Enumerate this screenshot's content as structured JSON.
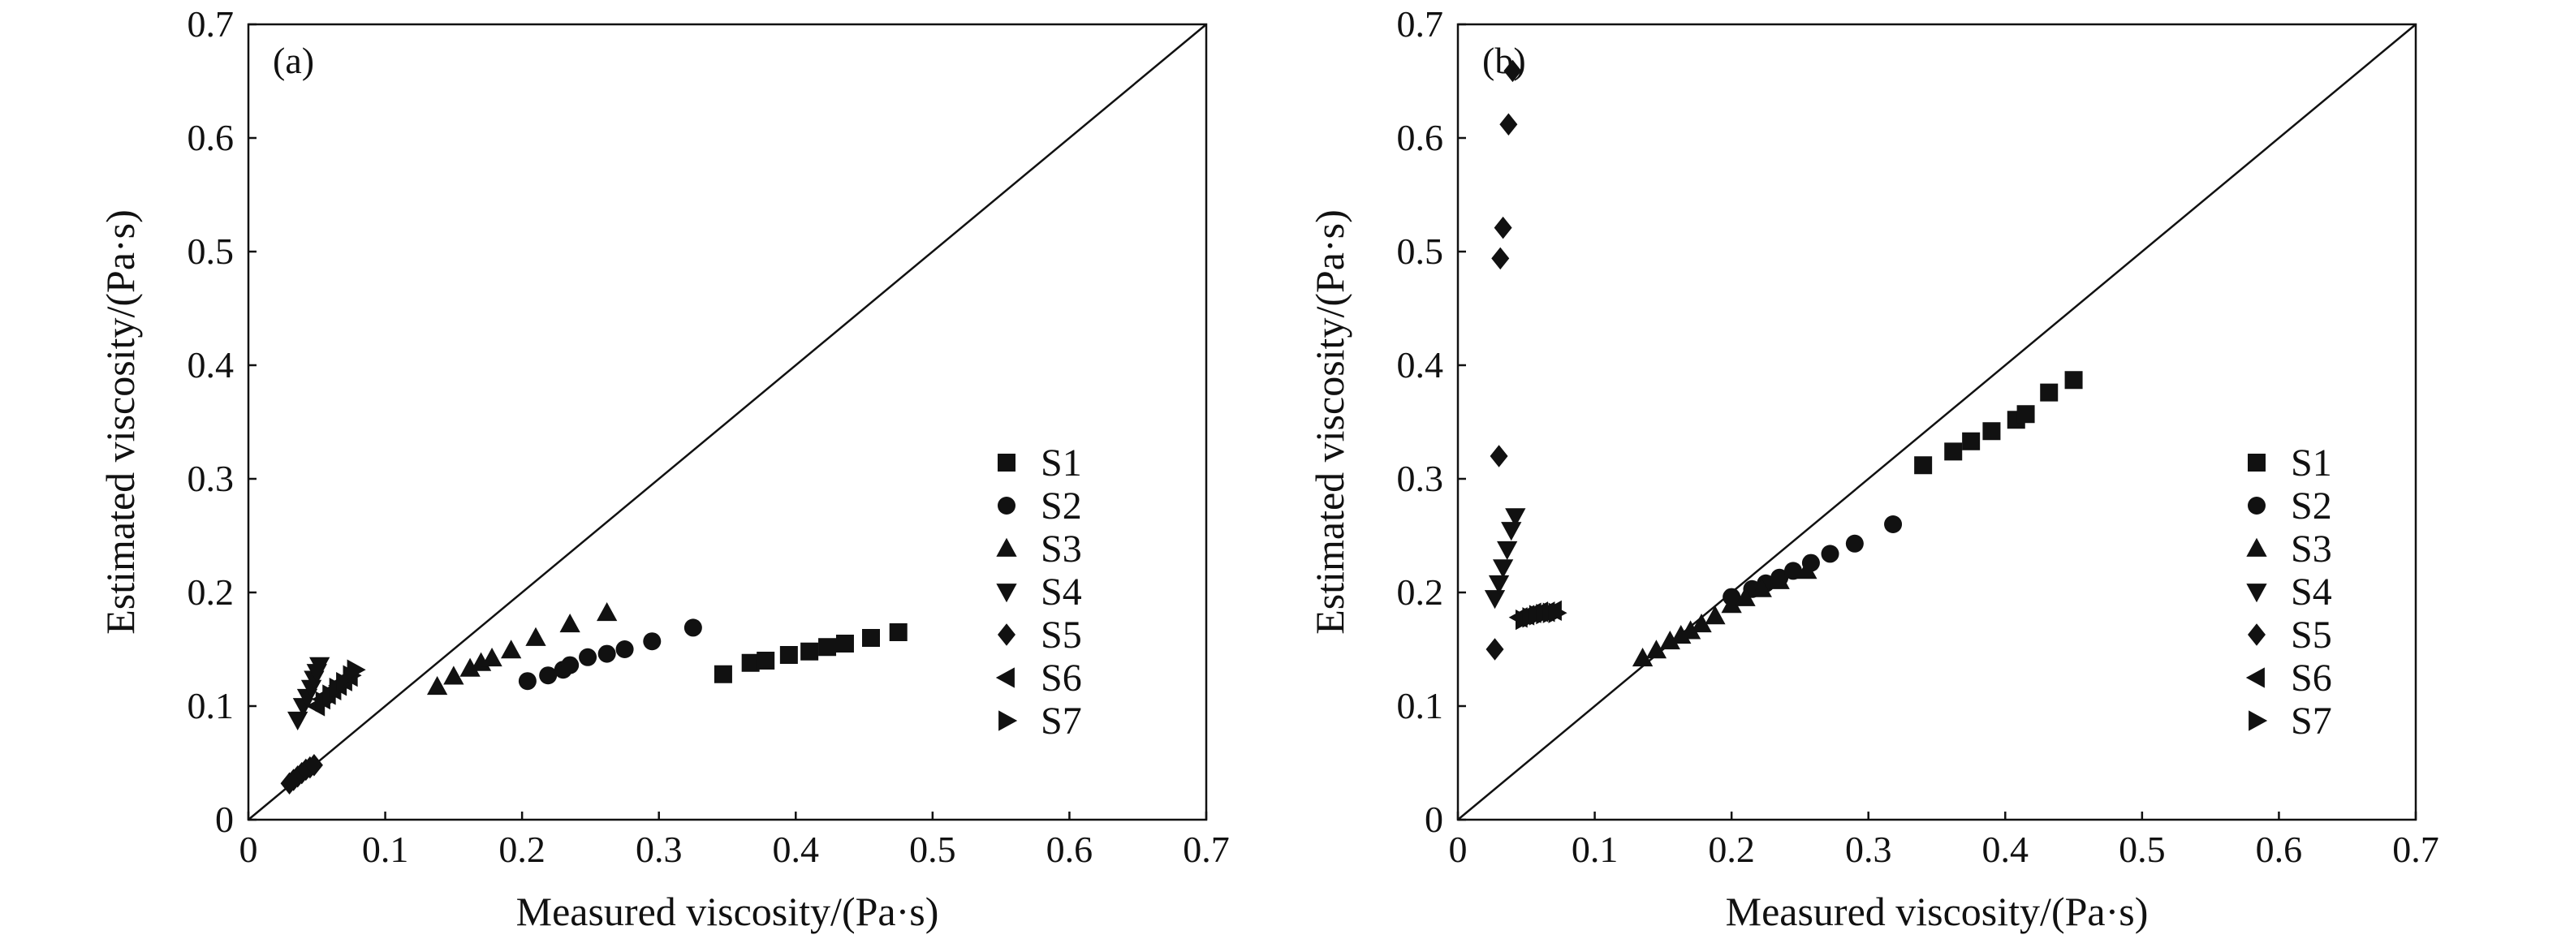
{
  "chart_data": [
    {
      "type": "scatter",
      "panel_label": "(a)",
      "xlabel": "Measured viscosity/(Pa·s)",
      "ylabel": "Estimated viscosity/(Pa·s)",
      "xlim": [
        0,
        0.7
      ],
      "ylim": [
        0,
        0.7
      ],
      "x_ticks": [
        "0",
        "0.1",
        "0.2",
        "0.3",
        "0.4",
        "0.5",
        "0.6",
        "0.7"
      ],
      "y_ticks": [
        "0",
        "0.1",
        "0.2",
        "0.3",
        "0.4",
        "0.5",
        "0.6",
        "0.7"
      ],
      "reference_line": "y = x",
      "grid": false,
      "legend_position": "right",
      "series": [
        {
          "name": "S1",
          "marker": "square",
          "x": [
            0.347,
            0.367,
            0.378,
            0.395,
            0.41,
            0.423,
            0.436,
            0.455,
            0.475
          ],
          "y": [
            0.128,
            0.138,
            0.14,
            0.145,
            0.148,
            0.152,
            0.155,
            0.16,
            0.165
          ]
        },
        {
          "name": "S2",
          "marker": "circle",
          "x": [
            0.204,
            0.219,
            0.23,
            0.235,
            0.248,
            0.262,
            0.275,
            0.295,
            0.325
          ],
          "y": [
            0.122,
            0.127,
            0.132,
            0.136,
            0.143,
            0.146,
            0.15,
            0.157,
            0.169
          ]
        },
        {
          "name": "S3",
          "marker": "triangle-up",
          "x": [
            0.138,
            0.15,
            0.162,
            0.17,
            0.178,
            0.192,
            0.21,
            0.235,
            0.262
          ],
          "y": [
            0.117,
            0.126,
            0.133,
            0.138,
            0.142,
            0.149,
            0.16,
            0.172,
            0.182
          ]
        },
        {
          "name": "S4",
          "marker": "triangle-down",
          "x": [
            0.036,
            0.04,
            0.043,
            0.046,
            0.048,
            0.05,
            0.052
          ],
          "y": [
            0.088,
            0.1,
            0.108,
            0.116,
            0.124,
            0.13,
            0.136
          ]
        },
        {
          "name": "S5",
          "marker": "diamond",
          "x": [
            0.03,
            0.033,
            0.036,
            0.039,
            0.042,
            0.045,
            0.048
          ],
          "y": [
            0.032,
            0.035,
            0.038,
            0.041,
            0.044,
            0.046,
            0.048
          ]
        },
        {
          "name": "S6",
          "marker": "triangle-left",
          "x": [
            0.05,
            0.054,
            0.058,
            0.062,
            0.066,
            0.07,
            0.074
          ],
          "y": [
            0.1,
            0.106,
            0.11,
            0.114,
            0.118,
            0.122,
            0.126
          ]
        },
        {
          "name": "S7",
          "marker": "triangle-right",
          "x": [
            0.055,
            0.06,
            0.065,
            0.07,
            0.075,
            0.078
          ],
          "y": [
            0.104,
            0.11,
            0.116,
            0.121,
            0.127,
            0.132
          ]
        }
      ]
    },
    {
      "type": "scatter",
      "panel_label": "(b)",
      "xlabel": "Measured viscosity/(Pa·s)",
      "ylabel": "Estimated viscosity/(Pa·s)",
      "xlim": [
        0,
        0.7
      ],
      "ylim": [
        0,
        0.7
      ],
      "x_ticks": [
        "0",
        "0.1",
        "0.2",
        "0.3",
        "0.4",
        "0.5",
        "0.6",
        "0.7"
      ],
      "y_ticks": [
        "0",
        "0.1",
        "0.2",
        "0.3",
        "0.4",
        "0.5",
        "0.6",
        "0.7"
      ],
      "reference_line": "y = x",
      "grid": false,
      "legend_position": "right",
      "series": [
        {
          "name": "S1",
          "marker": "square",
          "x": [
            0.34,
            0.362,
            0.375,
            0.39,
            0.408,
            0.415,
            0.432,
            0.45
          ],
          "y": [
            0.312,
            0.324,
            0.333,
            0.342,
            0.352,
            0.357,
            0.376,
            0.387
          ]
        },
        {
          "name": "S2",
          "marker": "circle",
          "x": [
            0.2,
            0.215,
            0.225,
            0.235,
            0.245,
            0.258,
            0.272,
            0.29,
            0.318
          ],
          "y": [
            0.196,
            0.203,
            0.208,
            0.213,
            0.219,
            0.226,
            0.234,
            0.243,
            0.26
          ]
        },
        {
          "name": "S3",
          "marker": "triangle-up",
          "x": [
            0.135,
            0.145,
            0.155,
            0.163,
            0.17,
            0.178,
            0.188,
            0.2,
            0.21,
            0.222,
            0.235,
            0.255
          ],
          "y": [
            0.142,
            0.149,
            0.157,
            0.162,
            0.166,
            0.172,
            0.179,
            0.189,
            0.195,
            0.203,
            0.21,
            0.219
          ]
        },
        {
          "name": "S4",
          "marker": "triangle-down",
          "x": [
            0.027,
            0.03,
            0.033,
            0.036,
            0.039,
            0.042
          ],
          "y": [
            0.195,
            0.208,
            0.222,
            0.238,
            0.255,
            0.267
          ]
        },
        {
          "name": "S5",
          "marker": "diamond",
          "x": [
            0.027,
            0.03,
            0.031,
            0.033,
            0.037,
            0.04
          ],
          "y": [
            0.15,
            0.32,
            0.494,
            0.521,
            0.612,
            0.659
          ]
        },
        {
          "name": "S6",
          "marker": "triangle-left",
          "x": [
            0.045,
            0.05,
            0.055,
            0.06,
            0.065,
            0.07
          ],
          "y": [
            0.178,
            0.18,
            0.182,
            0.183,
            0.183,
            0.184
          ]
        },
        {
          "name": "S7",
          "marker": "triangle-right",
          "x": [
            0.048,
            0.053,
            0.058,
            0.063,
            0.068,
            0.072
          ],
          "y": [
            0.176,
            0.178,
            0.18,
            0.181,
            0.182,
            0.182
          ]
        }
      ]
    }
  ]
}
